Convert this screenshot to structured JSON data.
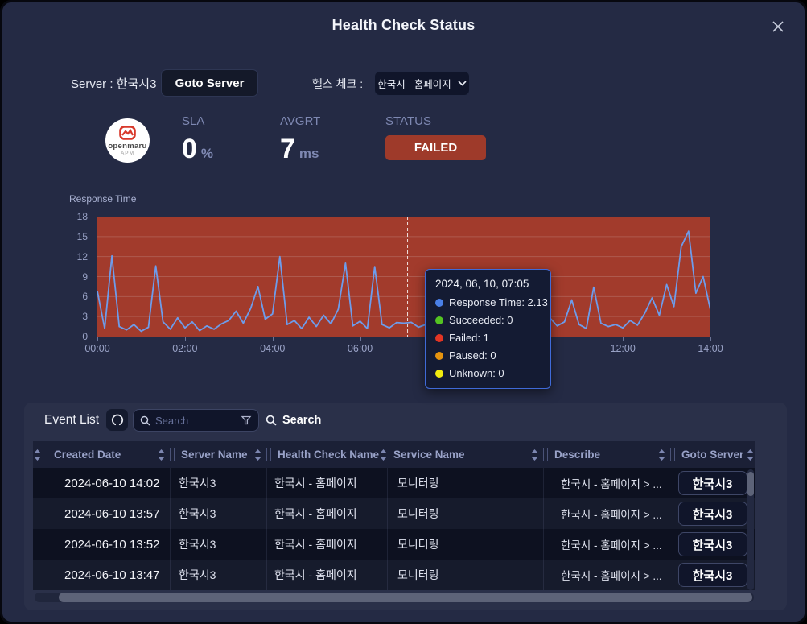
{
  "modal": {
    "title": "Health Check Status"
  },
  "controls": {
    "server_label": "Server : 한국시3",
    "goto_server_button": "Goto Server",
    "health_check_label": "헬스 체크 :",
    "health_check_selected": "한국시 - 홈페이지"
  },
  "stats": {
    "logo_brand": "openmaru",
    "logo_sub": "APM",
    "sla": {
      "label": "SLA",
      "value": "0",
      "unit": "%"
    },
    "avgrt": {
      "label": "AVGRT",
      "value": "7",
      "unit": "ms"
    },
    "status": {
      "label": "STATUS",
      "value": "FAILED",
      "color": "#9e3a2a"
    }
  },
  "chart_data": {
    "type": "line",
    "title": "Response Time",
    "xlabel": "",
    "ylabel": "",
    "ylim": [
      0,
      18
    ],
    "yticks": [
      0,
      3,
      6,
      9,
      12,
      15,
      18
    ],
    "xtick_labels": [
      "00:00",
      "02:00",
      "04:00",
      "06:00",
      "08:00",
      "10:00",
      "12:00",
      "14:00"
    ],
    "x_start": "00:00",
    "x_interval_minutes": 10,
    "grid": true,
    "status_band": {
      "name": "Failed",
      "color": "#a23b2c",
      "from": 0,
      "to": 18
    },
    "series": [
      {
        "name": "Response Time",
        "color": "#6d9ceb",
        "values": [
          6.8,
          1.2,
          12.1,
          1.5,
          1.0,
          1.8,
          0.8,
          1.4,
          10.6,
          2.2,
          1.1,
          2.8,
          1.3,
          2.2,
          0.9,
          1.6,
          1.1,
          1.9,
          2.4,
          3.8,
          2.0,
          4.2,
          7.5,
          2.6,
          3.4,
          12.0,
          1.8,
          2.4,
          1.2,
          2.9,
          1.5,
          3.2,
          1.9,
          4.1,
          11.0,
          1.6,
          2.3,
          1.2,
          10.5,
          1.8,
          1.3,
          2.1,
          2.0,
          2.13,
          1.4,
          1.8,
          1.1,
          1.6,
          1.9,
          1.2,
          2.5,
          1.4,
          1.8,
          1.1,
          1.5,
          2.0,
          1.2,
          1.7,
          1.3,
          2.2,
          1.5,
          1.0,
          2.8,
          1.6,
          2.2,
          5.5,
          1.8,
          1.2,
          7.4,
          2.0,
          1.5,
          1.8,
          1.3,
          2.4,
          1.7,
          3.5,
          5.8,
          3.2,
          7.8,
          4.5,
          13.5,
          15.8,
          6.5,
          9.0,
          4.0
        ]
      }
    ],
    "cursor_time": "07:05",
    "tooltip": {
      "title": "2024, 06, 10, 07:05",
      "rows": [
        {
          "label": "Response Time",
          "value": "2.13",
          "color": "#4a80e8"
        },
        {
          "label": "Succeeded",
          "value": "0",
          "color": "#54c322"
        },
        {
          "label": "Failed",
          "value": "1",
          "color": "#e23524"
        },
        {
          "label": "Paused",
          "value": "0",
          "color": "#e5930f"
        },
        {
          "label": "Unknown",
          "value": "0",
          "color": "#f2ec0f"
        }
      ]
    }
  },
  "event_list": {
    "title": "Event List",
    "search_placeholder": "Search",
    "search_button_label": "Search",
    "table": {
      "columns": [
        "Created Date",
        "Server Name",
        "Health Check Name",
        "Service Name",
        "Describe",
        "Goto Server"
      ],
      "rows": [
        {
          "created": "2024-06-10 14:02",
          "server": "한국시3",
          "health_check": "한국시 - 홈페이지",
          "service": "모니터링",
          "describe": "한국시 - 홈페이지 > ...",
          "goto": "한국시3"
        },
        {
          "created": "2024-06-10 13:57",
          "server": "한국시3",
          "health_check": "한국시 - 홈페이지",
          "service": "모니터링",
          "describe": "한국시 - 홈페이지 > ...",
          "goto": "한국시3"
        },
        {
          "created": "2024-06-10 13:52",
          "server": "한국시3",
          "health_check": "한국시 - 홈페이지",
          "service": "모니터링",
          "describe": "한국시 - 홈페이지 > ...",
          "goto": "한국시3"
        },
        {
          "created": "2024-06-10 13:47",
          "server": "한국시3",
          "health_check": "한국시 - 홈페이지",
          "service": "모니터링",
          "describe": "한국시 - 홈페이지 > ...",
          "goto": "한국시3"
        }
      ]
    }
  }
}
